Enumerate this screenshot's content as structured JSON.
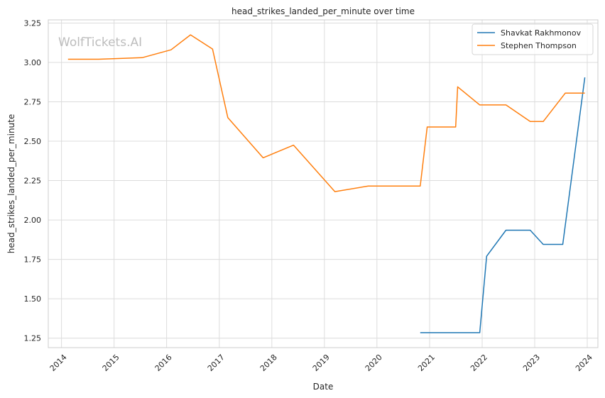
{
  "chart_data": {
    "type": "line",
    "title": "head_strikes_landed_per_minute over time",
    "xlabel": "Date",
    "ylabel": "head_strikes_landed_per_minute",
    "watermark": "WolfTickets.AI",
    "xlim": [
      "2013-10-01",
      "2024-03-15"
    ],
    "ylim": [
      1.19,
      3.27
    ],
    "x_ticks": [
      "2014",
      "2015",
      "2016",
      "2017",
      "2018",
      "2019",
      "2020",
      "2021",
      "2022",
      "2023",
      "2024"
    ],
    "y_ticks": [
      "1.25",
      "1.50",
      "1.75",
      "2.00",
      "2.25",
      "2.50",
      "2.75",
      "3.00",
      "3.25"
    ],
    "grid": true,
    "legend_position": "top-right",
    "colors": {
      "Shavkat Rakhmonov": "#1f77b4",
      "Stephen Thompson": "#ff7f0e"
    },
    "series": [
      {
        "name": "Shavkat Rakhmonov",
        "x": [
          "2020-10-28",
          "2021-12-15",
          "2022-02-01",
          "2022-06-15",
          "2022-12-01",
          "2023-03-01",
          "2023-07-15",
          "2023-12-15"
        ],
        "y": [
          1.285,
          1.285,
          1.77,
          1.935,
          1.935,
          1.845,
          1.845,
          2.905
        ]
      },
      {
        "name": "Stephen Thompson",
        "x": [
          "2014-02-15",
          "2014-09-15",
          "2015-07-15",
          "2016-02-01",
          "2016-06-15",
          "2016-11-15",
          "2017-03-01",
          "2017-11-01",
          "2018-06-01",
          "2019-03-15",
          "2019-11-01",
          "2020-10-28",
          "2020-12-15",
          "2021-07-01",
          "2021-07-15",
          "2021-12-15",
          "2022-06-15",
          "2022-12-01",
          "2023-03-01",
          "2023-08-01",
          "2023-12-15"
        ],
        "y": [
          3.02,
          3.02,
          3.03,
          3.08,
          3.175,
          3.085,
          2.65,
          2.395,
          2.475,
          2.18,
          2.215,
          2.215,
          2.59,
          2.59,
          2.845,
          2.73,
          2.73,
          2.625,
          2.625,
          2.805,
          2.805
        ]
      }
    ]
  }
}
